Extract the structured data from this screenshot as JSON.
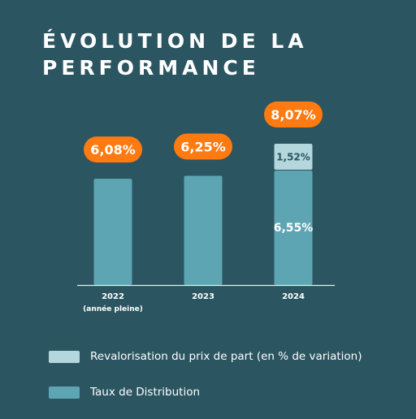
{
  "title": {
    "line1": "ÉVOLUTION DE LA",
    "line2": "PERFORMANCE"
  },
  "colors": {
    "background": "#2b5560",
    "distribution": "#5ea5b3",
    "revalorisation": "#b3d7dd",
    "total_badge": "#ff7a10"
  },
  "chart_data": {
    "type": "bar",
    "stacked": true,
    "categories": [
      {
        "label": "2022",
        "sublabel": "(année pleine)"
      },
      {
        "label": "2023",
        "sublabel": ""
      },
      {
        "label": "2024",
        "sublabel": ""
      }
    ],
    "series": [
      {
        "name": "Taux de Distribution",
        "values": [
          6.08,
          6.25,
          6.55
        ],
        "color": "#5ea5b3"
      },
      {
        "name": "Revalorisation du prix de part (en % de variation)",
        "values": [
          0,
          0,
          1.52
        ],
        "color": "#b3d7dd"
      }
    ],
    "totals": [
      "6,08%",
      "6,25%",
      "8,07%"
    ],
    "segment_labels": [
      {
        "category": 2,
        "series": 0,
        "text": "6,55%"
      },
      {
        "category": 2,
        "series": 1,
        "text": "1,52%"
      }
    ],
    "ylim": [
      0,
      8.07
    ]
  },
  "legend": [
    {
      "label": "Revalorisation du prix de part (en % de variation)",
      "color": "#b3d7dd"
    },
    {
      "label": "Taux de Distribution",
      "color": "#5ea5b3"
    }
  ]
}
